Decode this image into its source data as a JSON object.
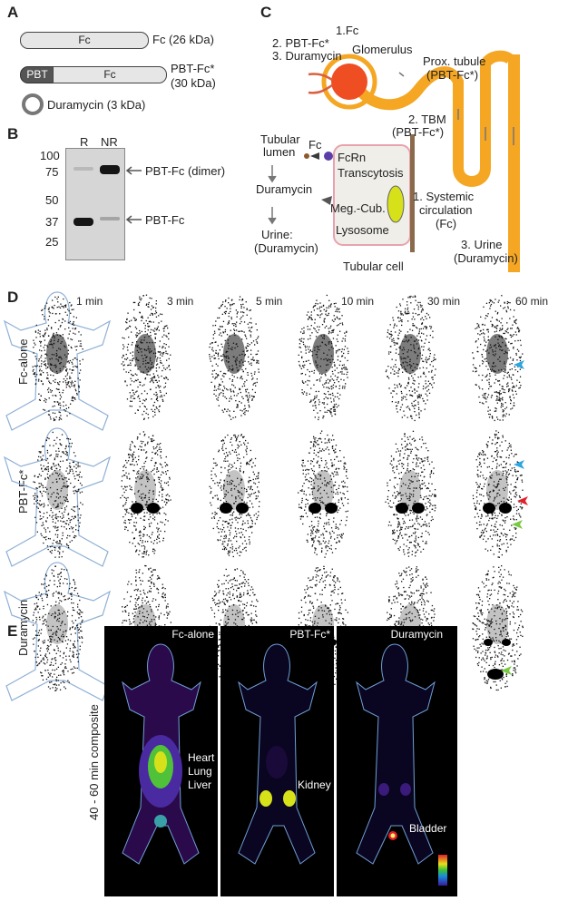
{
  "panel_a": {
    "label": "A",
    "fc_bar": "Fc",
    "fc_desc": "Fc (26 kDa)",
    "pbt_tag": "PBT",
    "pbt_fc_bar": "Fc",
    "pbt_fc_desc_1": "PBT-Fc*",
    "pbt_fc_desc_2": "(30 kDa)",
    "duramycin_desc": "Duramycin (3 kDa)"
  },
  "panel_b": {
    "label": "B",
    "lane_r": "R",
    "lane_nr": "NR",
    "markers": [
      "100",
      "75",
      "50",
      "37",
      "25"
    ],
    "band_dimer": "PBT-Fc (dimer)",
    "band_monomer": "PBT-Fc"
  },
  "panel_c": {
    "label": "C",
    "inputs": [
      "1.Fc",
      "2. PBT-Fc*",
      "3. Duramycin"
    ],
    "glomerulus": "Glomerulus",
    "prox_tubule_1": "Prox. tubule",
    "prox_tubule_2": "(PBT-Fc*)",
    "tbm_1": "2. TBM",
    "tbm_2": "(PBT-Fc*)",
    "tubular_lumen_1": "Tubular",
    "tubular_lumen_2": "lumen",
    "fc": "Fc",
    "fcrn": "FcRn",
    "transcytosis": "Transcytosis",
    "duramycin": "Duramycin",
    "systemic_1": "1. Systemic",
    "systemic_2": "circulation",
    "systemic_3": "(Fc)",
    "meg_cub": "Meg.-Cub.",
    "lysosome": "Lysosome",
    "urine_left_1": "Urine:",
    "urine_left_2": "(Duramycin)",
    "tubular_cell": "Tubular cell",
    "urine_right_1": "3. Urine",
    "urine_right_2": "(Duramycin)"
  },
  "panel_d": {
    "label": "D",
    "timepoints": [
      "1 min",
      "3 min",
      "5 min",
      "10 min",
      "30 min",
      "60 min"
    ],
    "rows": [
      "Fc-alone",
      "PBT-Fc*",
      "Duramycin"
    ],
    "arrow_colors": {
      "blue": "#2aa7e0",
      "red": "#e0202a",
      "green": "#7ac943"
    }
  },
  "panel_e": {
    "label": "E",
    "side_label": "40 - 60 min composite",
    "images": [
      {
        "title": "Fc-alone",
        "notes": [
          "Heart",
          "Lung",
          "Liver"
        ]
      },
      {
        "title": "PBT-Fc*",
        "notes": [
          "Kidney"
        ]
      },
      {
        "title": "Duramycin",
        "notes": [
          "Bladder"
        ]
      }
    ],
    "colorbar": "rainbow"
  }
}
